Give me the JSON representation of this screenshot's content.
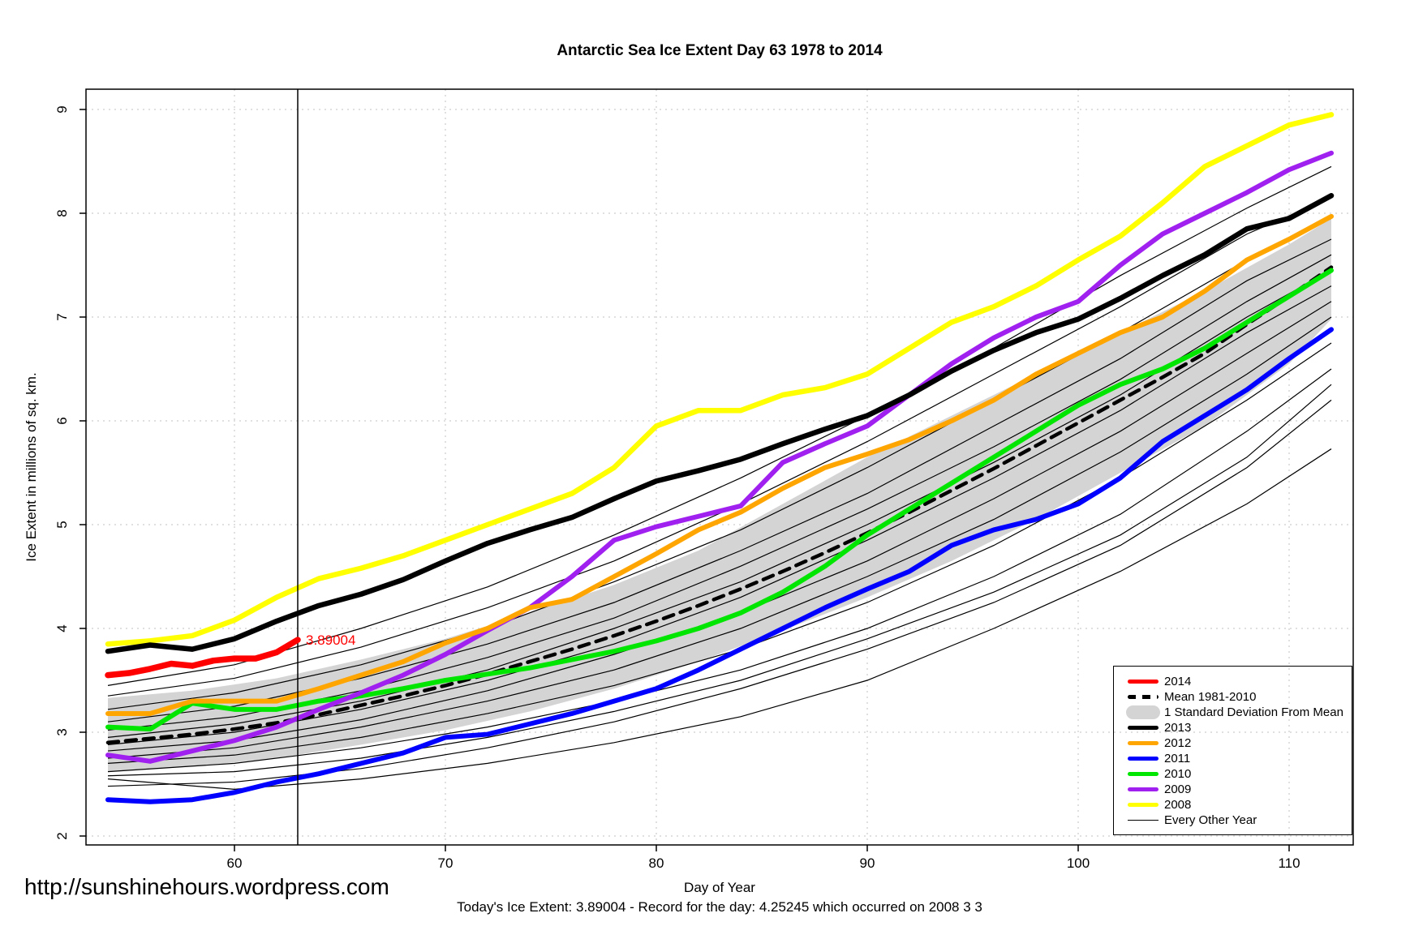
{
  "title": "Antarctic Sea Ice Extent Day 63 1978 to 2014",
  "footer": {
    "url": "http://sunshinehours.wordpress.com",
    "x_axis_caption": "Day of Year",
    "summary": "Today's Ice Extent: 3.89004  - Record for the day: 4.25245 which occurred on 2008 3 3"
  },
  "annotation": {
    "label": "3.89004",
    "day": 63,
    "value": 3.89,
    "color": "#ff0000"
  },
  "colors": {
    "band": "#d4d4d4",
    "grid": "#d6d6d6",
    "axis": "#000000",
    "other_year": "#000000"
  },
  "legend": [
    {
      "label": "2014",
      "swatch": "line",
      "color": "#ff0000"
    },
    {
      "label": "Mean 1981-2010",
      "swatch": "dash",
      "color": "#000000"
    },
    {
      "label": "1 Standard Deviation From Mean",
      "swatch": "band",
      "color": "#d4d4d4"
    },
    {
      "label": "2013",
      "swatch": "line",
      "color": "#000000"
    },
    {
      "label": "2012",
      "swatch": "line",
      "color": "#ffa500"
    },
    {
      "label": "2011",
      "swatch": "line",
      "color": "#0000ff"
    },
    {
      "label": "2010",
      "swatch": "line",
      "color": "#00e600"
    },
    {
      "label": "2009",
      "swatch": "line",
      "color": "#a020f0"
    },
    {
      "label": "2008",
      "swatch": "line",
      "color": "#ffff00"
    },
    {
      "label": "Every Other Year",
      "swatch": "thinline",
      "color": "#000000"
    }
  ],
  "chart_data": {
    "type": "line",
    "title": "Antarctic Sea Ice Extent Day 63 1978 to 2014",
    "xlabel": "Day of Year",
    "ylabel": "Ice Extent in millions of sq. km.",
    "x_ticks": [
      60,
      70,
      80,
      90,
      100,
      110
    ],
    "y_ticks": [
      2,
      3,
      4,
      5,
      6,
      7,
      8,
      9
    ],
    "xlim": [
      53.0,
      113.2
    ],
    "ylim": [
      1.9,
      9.2
    ],
    "grid": "dotted",
    "legend_position": "bottom-right",
    "vline_day": 63,
    "band": {
      "name": "1 Standard Deviation From Mean",
      "days": [
        54,
        58,
        62,
        66,
        70,
        74,
        78,
        82,
        86,
        90,
        94,
        98,
        102,
        106,
        110,
        112
      ],
      "upper": [
        3.33,
        3.4,
        3.52,
        3.7,
        3.9,
        4.15,
        4.42,
        4.75,
        5.2,
        5.65,
        6.05,
        6.45,
        6.85,
        7.25,
        7.7,
        7.95
      ],
      "lower": [
        2.62,
        2.67,
        2.75,
        2.88,
        3.02,
        3.2,
        3.42,
        3.68,
        3.98,
        4.3,
        4.65,
        5.05,
        5.5,
        5.95,
        6.55,
        6.98
      ]
    },
    "series": [
      {
        "name": "Mean 1981-2010",
        "color": "#000000",
        "width": 4.5,
        "dash": "13 9",
        "days": [
          54,
          56,
          58,
          60,
          62,
          64,
          66,
          68,
          70,
          72,
          74,
          76,
          78,
          80,
          82,
          84,
          86,
          88,
          90,
          92,
          94,
          96,
          98,
          100,
          102,
          104,
          106,
          108,
          110,
          112
        ],
        "values": [
          2.9,
          2.94,
          2.98,
          3.03,
          3.09,
          3.17,
          3.26,
          3.35,
          3.45,
          3.56,
          3.68,
          3.8,
          3.93,
          4.07,
          4.22,
          4.38,
          4.55,
          4.73,
          4.92,
          5.12,
          5.33,
          5.54,
          5.76,
          5.98,
          6.2,
          6.42,
          6.65,
          6.93,
          7.2,
          7.48
        ]
      },
      {
        "name": "2011",
        "color": "#0000ff",
        "width": 6,
        "days": [
          54,
          56,
          58,
          60,
          62,
          64,
          66,
          68,
          70,
          72,
          74,
          76,
          78,
          80,
          82,
          84,
          86,
          88,
          90,
          92,
          94,
          96,
          98,
          100,
          102,
          104,
          106,
          108,
          110,
          112
        ],
        "values": [
          2.35,
          2.33,
          2.35,
          2.42,
          2.52,
          2.6,
          2.7,
          2.8,
          2.95,
          2.98,
          3.08,
          3.18,
          3.3,
          3.42,
          3.6,
          3.8,
          4.0,
          4.2,
          4.38,
          4.55,
          4.8,
          4.95,
          5.05,
          5.2,
          5.45,
          5.8,
          6.05,
          6.3,
          6.6,
          6.88
        ]
      },
      {
        "name": "2010",
        "color": "#00e600",
        "width": 6,
        "days": [
          54,
          56,
          58,
          60,
          62,
          64,
          66,
          68,
          70,
          72,
          74,
          76,
          78,
          80,
          82,
          84,
          86,
          88,
          90,
          92,
          94,
          96,
          98,
          100,
          102,
          104,
          106,
          108,
          110,
          112
        ],
        "values": [
          3.05,
          3.03,
          3.28,
          3.22,
          3.22,
          3.3,
          3.35,
          3.42,
          3.5,
          3.56,
          3.62,
          3.7,
          3.78,
          3.88,
          4.0,
          4.15,
          4.35,
          4.6,
          4.9,
          5.15,
          5.4,
          5.65,
          5.9,
          6.15,
          6.35,
          6.5,
          6.7,
          6.95,
          7.2,
          7.45
        ]
      },
      {
        "name": "2009",
        "color": "#a020f0",
        "width": 6,
        "days": [
          54,
          56,
          58,
          60,
          62,
          64,
          66,
          68,
          70,
          72,
          74,
          76,
          78,
          80,
          82,
          84,
          86,
          88,
          90,
          92,
          94,
          96,
          98,
          100,
          102,
          104,
          106,
          108,
          110,
          112
        ],
        "values": [
          2.78,
          2.72,
          2.82,
          2.92,
          3.05,
          3.22,
          3.38,
          3.55,
          3.75,
          3.98,
          4.2,
          4.5,
          4.85,
          4.98,
          5.08,
          5.18,
          5.6,
          5.78,
          5.95,
          6.25,
          6.55,
          6.8,
          7.0,
          7.15,
          7.5,
          7.8,
          8.0,
          8.2,
          8.42,
          8.58
        ]
      },
      {
        "name": "2012",
        "color": "#ffa500",
        "width": 6,
        "days": [
          54,
          56,
          58,
          60,
          62,
          64,
          66,
          68,
          70,
          72,
          74,
          76,
          78,
          80,
          82,
          84,
          86,
          88,
          90,
          92,
          94,
          96,
          98,
          100,
          102,
          104,
          106,
          108,
          110,
          112
        ],
        "values": [
          3.18,
          3.18,
          3.3,
          3.3,
          3.3,
          3.42,
          3.55,
          3.68,
          3.86,
          4.0,
          4.2,
          4.28,
          4.5,
          4.72,
          4.95,
          5.12,
          5.35,
          5.55,
          5.68,
          5.82,
          6.0,
          6.2,
          6.45,
          6.65,
          6.85,
          7.0,
          7.25,
          7.55,
          7.75,
          7.97
        ]
      },
      {
        "name": "2008",
        "color": "#ffff00",
        "width": 6.5,
        "days": [
          54,
          56,
          58,
          60,
          62,
          64,
          66,
          68,
          70,
          72,
          74,
          76,
          78,
          80,
          82,
          84,
          86,
          88,
          90,
          92,
          94,
          96,
          98,
          100,
          102,
          104,
          106,
          108,
          110,
          112
        ],
        "values": [
          3.85,
          3.88,
          3.93,
          4.08,
          4.3,
          4.48,
          4.58,
          4.7,
          4.85,
          5.0,
          5.15,
          5.3,
          5.55,
          5.95,
          6.1,
          6.1,
          6.25,
          6.32,
          6.45,
          6.7,
          6.95,
          7.1,
          7.3,
          7.55,
          7.78,
          8.1,
          8.45,
          8.65,
          8.85,
          8.95
        ]
      },
      {
        "name": "2013",
        "color": "#000000",
        "width": 6.5,
        "days": [
          54,
          56,
          58,
          60,
          62,
          64,
          66,
          68,
          70,
          72,
          74,
          76,
          78,
          80,
          82,
          84,
          86,
          88,
          90,
          92,
          94,
          96,
          98,
          100,
          102,
          104,
          106,
          108,
          110,
          112
        ],
        "values": [
          3.78,
          3.84,
          3.8,
          3.9,
          4.07,
          4.22,
          4.33,
          4.47,
          4.65,
          4.82,
          4.95,
          5.07,
          5.25,
          5.42,
          5.52,
          5.63,
          5.78,
          5.92,
          6.05,
          6.25,
          6.48,
          6.68,
          6.85,
          6.98,
          7.18,
          7.4,
          7.6,
          7.85,
          7.95,
          8.17
        ]
      },
      {
        "name": "2014",
        "color": "#ff0000",
        "width": 7.5,
        "days": [
          54,
          55,
          56,
          57,
          58,
          59,
          60,
          61,
          62,
          63
        ],
        "values": [
          3.55,
          3.57,
          3.61,
          3.66,
          3.64,
          3.69,
          3.71,
          3.71,
          3.77,
          3.89
        ]
      }
    ],
    "other_years": {
      "name": "Every Other Year",
      "days": [
        54,
        60,
        66,
        72,
        78,
        84,
        90,
        96,
        102,
        108,
        112
      ],
      "lines": [
        [
          2.48,
          2.52,
          2.65,
          2.85,
          3.1,
          3.42,
          3.8,
          4.25,
          4.8,
          5.55,
          6.2
        ],
        [
          2.55,
          2.45,
          2.55,
          2.7,
          2.9,
          3.15,
          3.5,
          4.0,
          4.55,
          5.2,
          5.73
        ],
        [
          2.58,
          2.62,
          2.75,
          2.95,
          3.2,
          3.5,
          3.9,
          4.35,
          4.9,
          5.65,
          6.35
        ],
        [
          2.62,
          2.7,
          2.85,
          3.05,
          3.3,
          3.6,
          4.0,
          4.5,
          5.1,
          5.9,
          6.5
        ],
        [
          2.7,
          2.78,
          2.95,
          3.18,
          3.45,
          3.8,
          4.25,
          4.8,
          5.45,
          6.2,
          6.75
        ],
        [
          2.75,
          2.85,
          3.05,
          3.3,
          3.6,
          4.0,
          4.5,
          5.05,
          5.7,
          6.45,
          7.0
        ],
        [
          2.82,
          2.92,
          3.12,
          3.4,
          3.75,
          4.15,
          4.65,
          5.25,
          5.9,
          6.65,
          7.15
        ],
        [
          2.88,
          3.0,
          3.22,
          3.5,
          3.85,
          4.3,
          4.85,
          5.45,
          6.1,
          6.85,
          7.3
        ],
        [
          2.95,
          3.08,
          3.3,
          3.6,
          4.0,
          4.45,
          5.0,
          5.6,
          6.25,
          7.0,
          7.45
        ],
        [
          3.02,
          3.15,
          3.4,
          3.72,
          4.1,
          4.6,
          5.15,
          5.75,
          6.4,
          7.15,
          7.6
        ],
        [
          3.1,
          3.25,
          3.52,
          3.85,
          4.25,
          4.75,
          5.3,
          5.95,
          6.6,
          7.35,
          7.75
        ],
        [
          3.22,
          3.38,
          3.65,
          4.0,
          4.45,
          4.95,
          5.55,
          6.2,
          6.85,
          7.55,
          7.95
        ],
        [
          3.35,
          3.52,
          3.82,
          4.2,
          4.65,
          5.2,
          5.8,
          6.45,
          7.1,
          7.8,
          8.15
        ],
        [
          3.45,
          3.65,
          4.0,
          4.4,
          4.9,
          5.45,
          6.05,
          6.7,
          7.4,
          8.05,
          8.45
        ]
      ]
    }
  }
}
